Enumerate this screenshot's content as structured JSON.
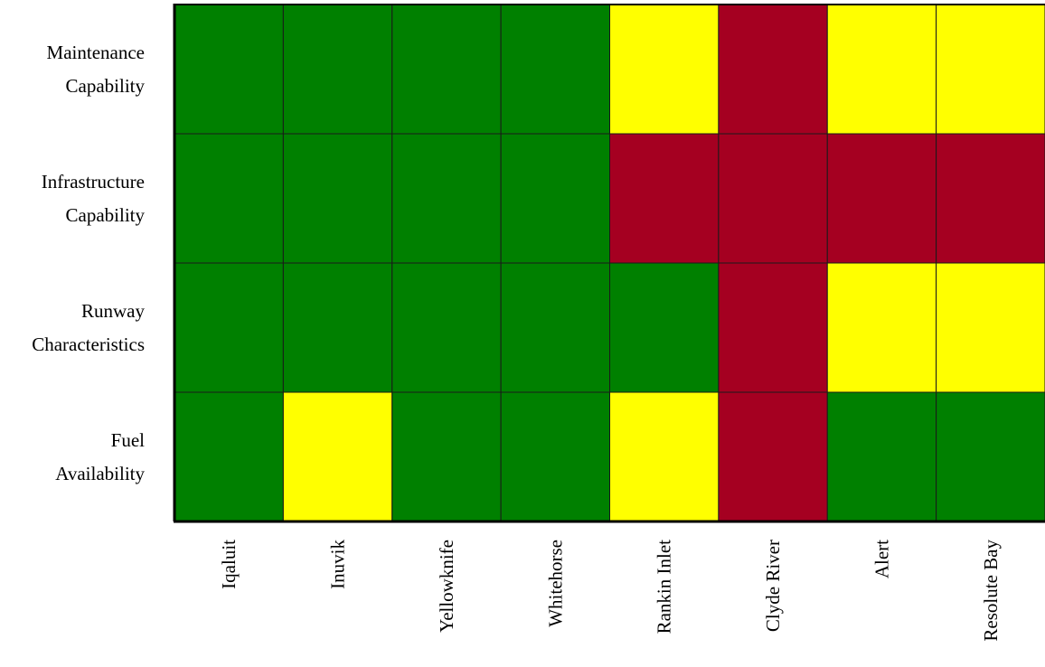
{
  "chart_data": {
    "type": "heatmap",
    "rows": [
      [
        "Maintenance",
        "Capability"
      ],
      [
        "Infrastructure",
        "Capability"
      ],
      [
        "Runway",
        "Characteristics"
      ],
      [
        "Fuel",
        "Availability"
      ]
    ],
    "columns": [
      "Iqaluit",
      "Inuvik",
      "Yellowknife",
      "Whitehorse",
      "Rankin Inlet",
      "Clyde River",
      "Alert",
      "Resolute Bay"
    ],
    "values": [
      [
        "green",
        "green",
        "green",
        "green",
        "yellow",
        "red",
        "yellow",
        "yellow"
      ],
      [
        "green",
        "green",
        "green",
        "green",
        "red",
        "red",
        "red",
        "red"
      ],
      [
        "green",
        "green",
        "green",
        "green",
        "green",
        "red",
        "yellow",
        "yellow"
      ],
      [
        "green",
        "yellow",
        "green",
        "green",
        "yellow",
        "red",
        "green",
        "green"
      ]
    ],
    "colors": {
      "green": "#008000",
      "yellow": "#ffff00",
      "red": "#a50021"
    }
  }
}
